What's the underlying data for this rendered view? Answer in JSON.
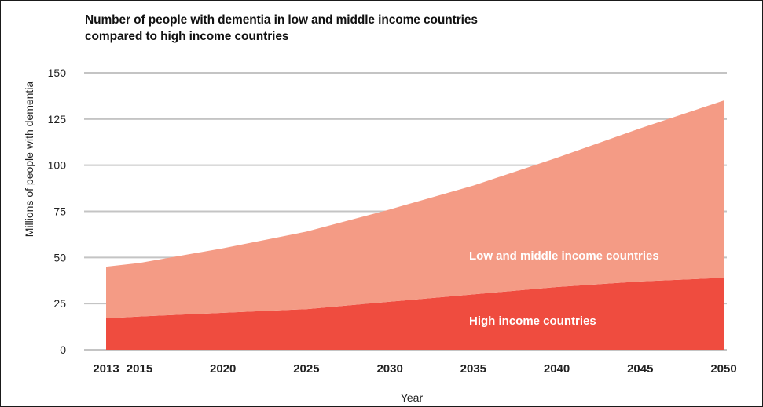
{
  "chart_data": {
    "type": "area",
    "title_lines": [
      "Number of people with dementia in low and middle income countries",
      "compared to high income countries"
    ],
    "xlabel": "Year",
    "ylabel": "Millions of people with dementia",
    "x": [
      2013,
      2015,
      2020,
      2025,
      2030,
      2035,
      2040,
      2045,
      2050
    ],
    "x_ticks": [
      "2013",
      "2015",
      "2020",
      "2025",
      "2030",
      "2035",
      "2040",
      "2045",
      "2050"
    ],
    "y_ticks": [
      "0",
      "25",
      "50",
      "75",
      "100",
      "125",
      "150"
    ],
    "ylim": [
      0,
      150
    ],
    "grid": true,
    "stacked": true,
    "series": [
      {
        "name": "High income countries",
        "values": [
          17,
          18,
          20,
          22,
          26,
          30,
          34,
          37,
          39
        ],
        "color": "#ef4c3f"
      },
      {
        "name": "Low and middle income countries",
        "values": [
          28,
          29,
          35,
          42,
          50,
          59,
          70,
          83,
          96
        ],
        "color": "#f49b85"
      }
    ],
    "series_label_color": "#ffffff"
  }
}
